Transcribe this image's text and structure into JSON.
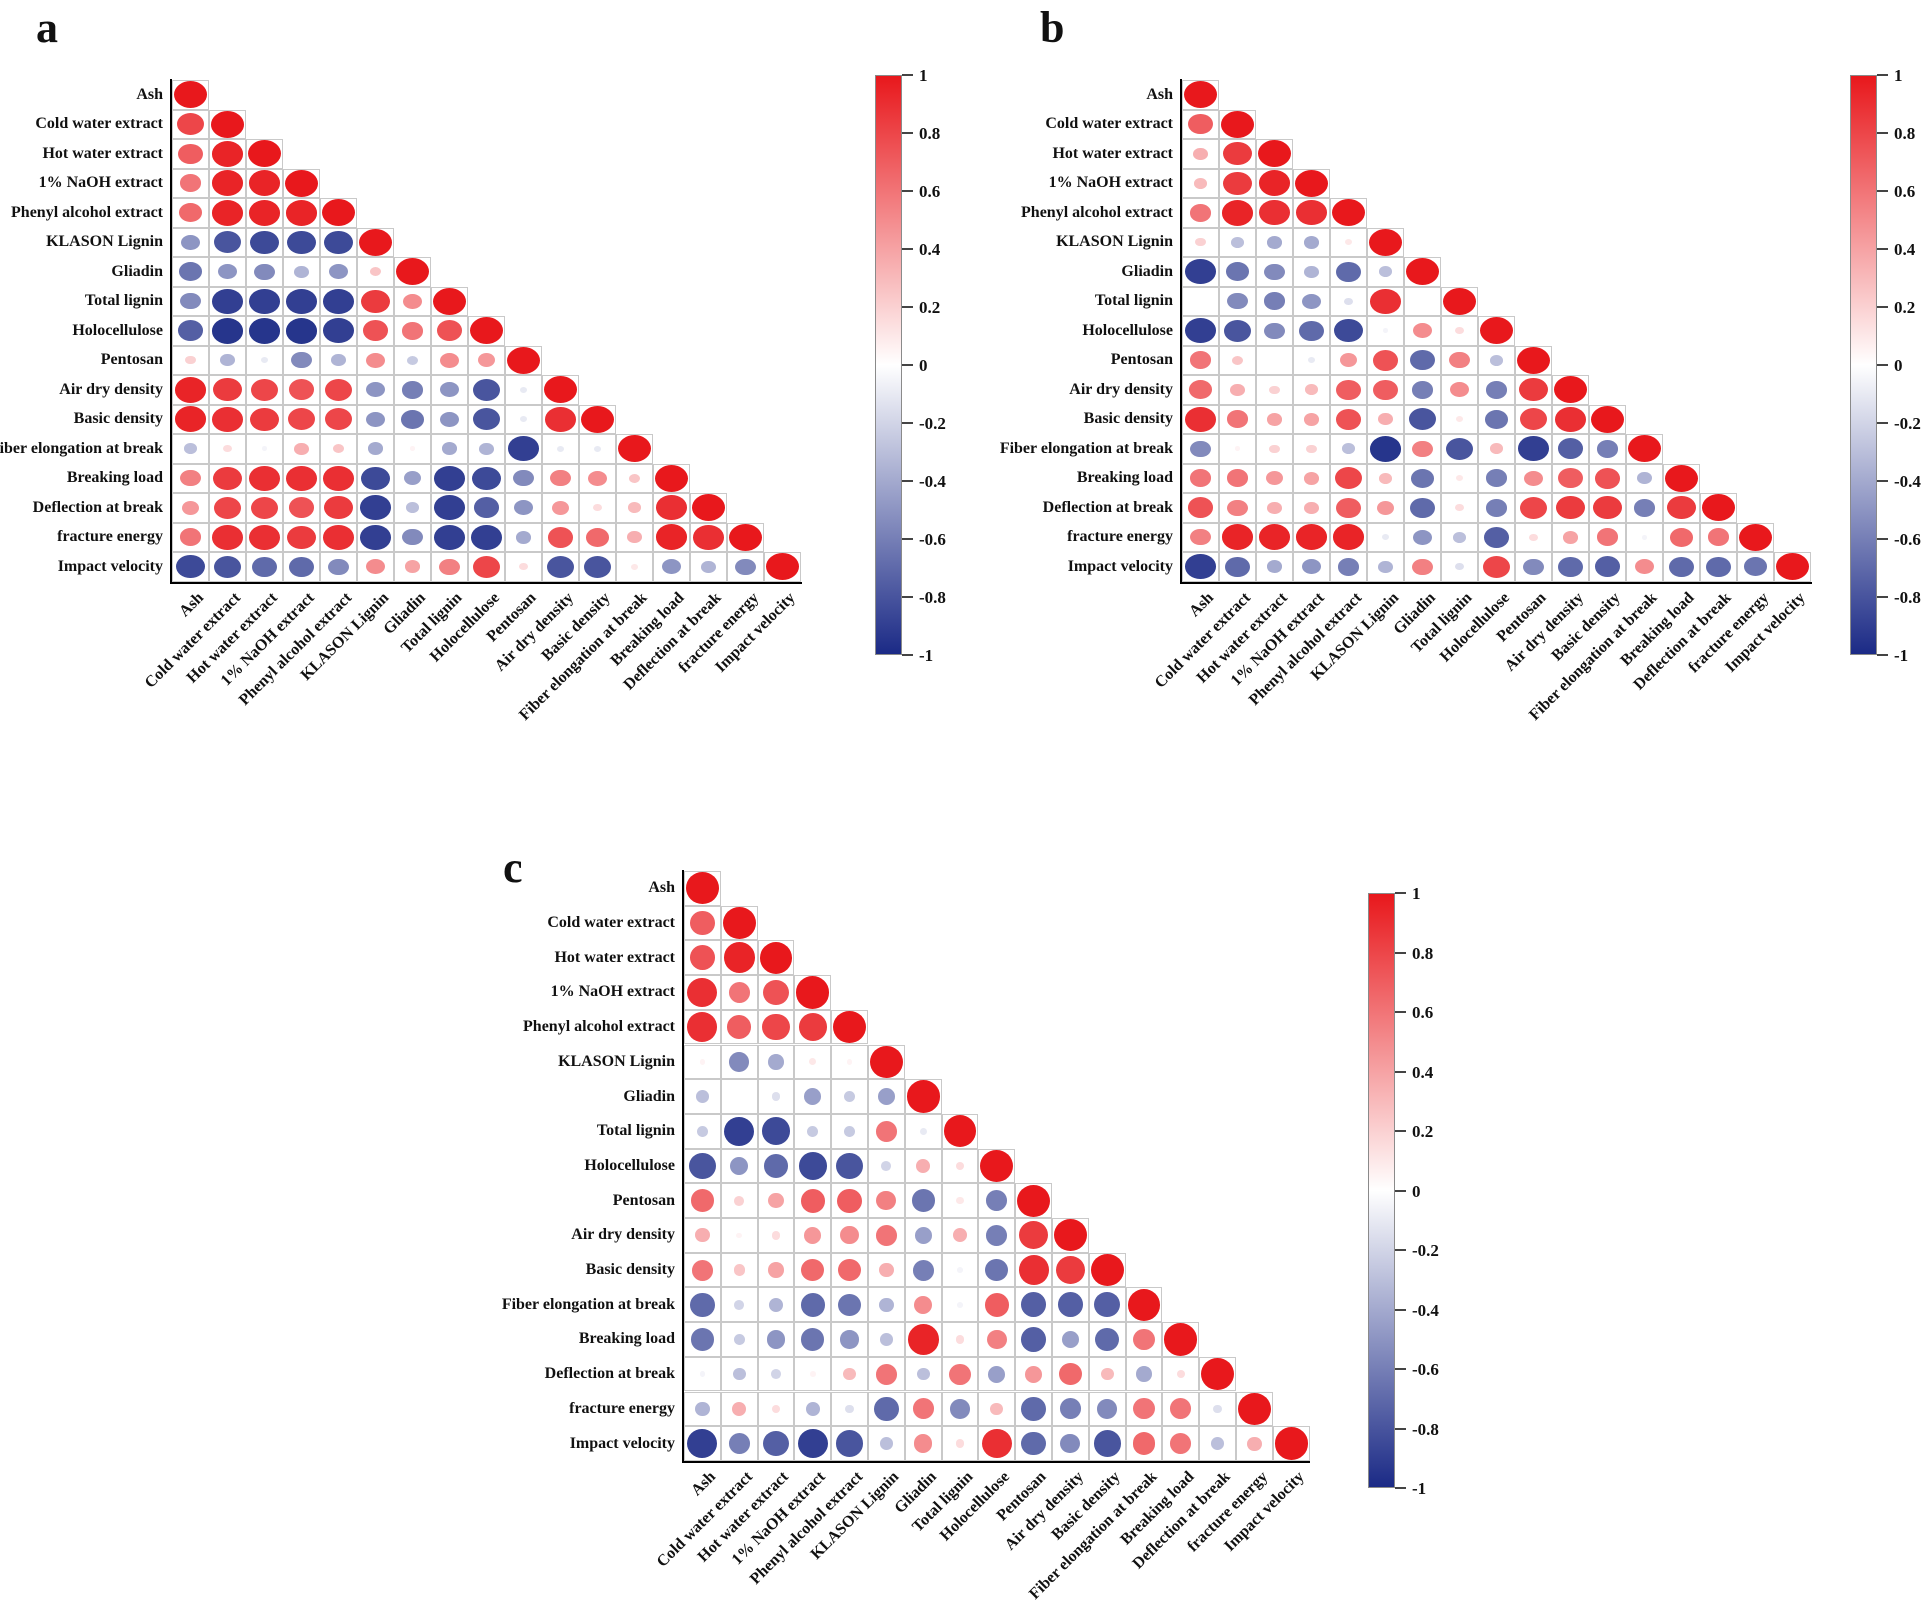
{
  "figure": {
    "background_color": "#ffffff",
    "panel_labels": [
      "a",
      "b",
      "c"
    ],
    "accent_positive_color": "#e8181c",
    "accent_negative_color": "#1b2a86"
  },
  "variables": [
    "Ash",
    "Cold water extract",
    "Hot water extract",
    "1% NaOH extract",
    "Phenyl alcohol extract",
    "KLASON Lignin",
    "Gliadin",
    "Total lignin",
    "Holocellulose",
    "Pentosan",
    "Air dry density",
    "Basic density",
    "Fiber elongation at break",
    "Breaking load",
    "Deflection at break",
    "fracture energy",
    "Impact velocity"
  ],
  "colorbar": {
    "tick_labels": [
      "1",
      "0.8",
      "0.6",
      "0.4",
      "0.2",
      "0",
      "-0.2",
      "-0.4",
      "-0.6",
      "-0.8",
      "-1"
    ],
    "top_color": "#e8181c",
    "mid_color": "#ffffff",
    "bottom_color": "#1b2a86"
  },
  "chart_data": [
    {
      "type": "heatmap",
      "subtype": "correlation-circle-matrix-lower-triangle",
      "panel_label": "a",
      "value_range": [
        -1,
        1
      ],
      "legend_position": "right",
      "categories": [
        "Ash",
        "Cold water extract",
        "Hot water extract",
        "1% NaOH extract",
        "Phenyl alcohol extract",
        "KLASON Lignin",
        "Gliadin",
        "Total lignin",
        "Holocellulose",
        "Pentosan",
        "Air dry density",
        "Basic density",
        "Fiber elongation at break",
        "Breaking load",
        "Deflection at break",
        "fracture energy",
        "Impact velocity"
      ],
      "matrix": [
        [
          1
        ],
        [
          0.8,
          1
        ],
        [
          0.7,
          0.95,
          1
        ],
        [
          0.6,
          0.95,
          0.95,
          1
        ],
        [
          0.65,
          0.95,
          0.95,
          0.95,
          1
        ],
        [
          -0.5,
          -0.8,
          -0.85,
          -0.85,
          -0.85,
          1
        ],
        [
          -0.65,
          -0.5,
          -0.55,
          -0.35,
          -0.5,
          0.25,
          1
        ],
        [
          -0.55,
          -0.9,
          -0.9,
          -0.9,
          -0.9,
          0.85,
          0.5,
          1
        ],
        [
          -0.75,
          -0.95,
          -0.95,
          -0.95,
          -0.9,
          0.75,
          0.6,
          0.75,
          1
        ],
        [
          0.2,
          -0.35,
          -0.1,
          -0.55,
          -0.35,
          0.5,
          -0.25,
          0.5,
          0.45,
          1
        ],
        [
          0.95,
          0.85,
          0.8,
          0.75,
          0.8,
          -0.5,
          -0.6,
          -0.5,
          -0.8,
          -0.1,
          1
        ],
        [
          0.95,
          0.9,
          0.85,
          0.8,
          0.8,
          -0.5,
          -0.65,
          -0.5,
          -0.8,
          -0.1,
          0.9,
          1
        ],
        [
          -0.3,
          0.15,
          -0.05,
          0.35,
          0.25,
          -0.4,
          0.05,
          -0.4,
          -0.35,
          -0.9,
          -0.1,
          -0.1,
          1
        ],
        [
          0.55,
          0.85,
          0.9,
          0.9,
          0.9,
          -0.85,
          -0.45,
          -0.9,
          -0.85,
          -0.55,
          0.55,
          0.5,
          0.25,
          1
        ],
        [
          0.45,
          0.8,
          0.8,
          0.75,
          0.85,
          -0.9,
          -0.3,
          -0.9,
          -0.75,
          -0.5,
          0.45,
          0.15,
          0.3,
          0.9,
          1
        ],
        [
          0.6,
          0.9,
          0.9,
          0.85,
          0.9,
          -0.9,
          -0.55,
          -0.9,
          -0.9,
          -0.4,
          0.75,
          0.65,
          0.35,
          0.95,
          0.9,
          1
        ],
        [
          -0.85,
          -0.8,
          -0.7,
          -0.7,
          -0.55,
          0.5,
          0.4,
          0.55,
          0.8,
          0.15,
          -0.8,
          -0.8,
          0.1,
          -0.5,
          -0.35,
          -0.55,
          1
        ]
      ]
    },
    {
      "type": "heatmap",
      "subtype": "correlation-circle-matrix-lower-triangle",
      "panel_label": "b",
      "value_range": [
        -1,
        1
      ],
      "legend_position": "right",
      "categories": [
        "Ash",
        "Cold water extract",
        "Hot water extract",
        "1% NaOH extract",
        "Phenyl alcohol extract",
        "KLASON Lignin",
        "Gliadin",
        "Total lignin",
        "Holocellulose",
        "Pentosan",
        "Air dry density",
        "Basic density",
        "Fiber elongation at break",
        "Breaking load",
        "Deflection at break",
        "fracture energy",
        "Impact velocity"
      ],
      "matrix": [
        [
          1
        ],
        [
          0.7,
          1
        ],
        [
          0.35,
          0.85,
          1
        ],
        [
          0.3,
          0.85,
          0.95,
          1
        ],
        [
          0.6,
          0.95,
          0.9,
          0.9,
          1
        ],
        [
          0.2,
          -0.3,
          -0.4,
          -0.4,
          0.1,
          1
        ],
        [
          -0.9,
          -0.65,
          -0.55,
          -0.35,
          -0.7,
          -0.3,
          1
        ],
        [
          0,
          -0.55,
          -0.6,
          -0.5,
          -0.15,
          0.9,
          0,
          1
        ],
        [
          -0.9,
          -0.8,
          -0.55,
          -0.7,
          -0.85,
          -0.05,
          0.5,
          0.15,
          1
        ],
        [
          0.6,
          0.25,
          0,
          -0.1,
          0.45,
          0.75,
          -0.7,
          0.55,
          -0.3,
          1
        ],
        [
          0.65,
          0.35,
          0.2,
          0.3,
          0.7,
          0.7,
          -0.6,
          0.5,
          -0.6,
          0.85,
          1
        ],
        [
          0.9,
          0.6,
          0.4,
          0.4,
          0.75,
          0.35,
          -0.8,
          0.1,
          -0.65,
          0.8,
          0.9,
          1
        ],
        [
          -0.55,
          0.05,
          0.2,
          0.2,
          -0.3,
          -0.95,
          0.55,
          -0.8,
          0.3,
          -0.9,
          -0.75,
          -0.6,
          1
        ],
        [
          0.6,
          0.6,
          0.45,
          0.4,
          0.8,
          0.3,
          -0.65,
          0.1,
          -0.6,
          0.5,
          0.7,
          0.75,
          -0.35,
          1
        ],
        [
          0.75,
          0.55,
          0.35,
          0.35,
          0.7,
          0.45,
          -0.7,
          0.15,
          -0.6,
          0.8,
          0.85,
          0.85,
          -0.6,
          0.85,
          1
        ],
        [
          0.55,
          0.95,
          0.95,
          0.95,
          0.95,
          -0.1,
          -0.5,
          -0.3,
          -0.75,
          0.15,
          0.4,
          0.6,
          -0.05,
          0.65,
          0.6,
          1
        ],
        [
          -0.9,
          -0.7,
          -0.4,
          -0.5,
          -0.6,
          -0.35,
          0.55,
          -0.15,
          0.8,
          -0.55,
          -0.7,
          -0.75,
          0.5,
          -0.7,
          -0.7,
          -0.65,
          1
        ]
      ]
    },
    {
      "type": "heatmap",
      "subtype": "correlation-circle-matrix-lower-triangle",
      "panel_label": "c",
      "value_range": [
        -1,
        1
      ],
      "legend_position": "right",
      "categories": [
        "Ash",
        "Cold water extract",
        "Hot water extract",
        "1% NaOH extract",
        "Phenyl alcohol extract",
        "KLASON Lignin",
        "Gliadin",
        "Total lignin",
        "Holocellulose",
        "Pentosan",
        "Air dry density",
        "Basic density",
        "Fiber elongation at break",
        "Breaking load",
        "Deflection at break",
        "fracture energy",
        "Impact velocity"
      ],
      "matrix": [
        [
          1
        ],
        [
          0.7,
          1
        ],
        [
          0.75,
          0.95,
          1
        ],
        [
          0.9,
          0.6,
          0.75,
          1
        ],
        [
          0.9,
          0.7,
          0.8,
          0.85,
          1
        ],
        [
          0.05,
          -0.55,
          -0.4,
          0.1,
          0.05,
          1
        ],
        [
          -0.3,
          0,
          -0.15,
          -0.45,
          -0.25,
          -0.45,
          1
        ],
        [
          -0.25,
          -0.9,
          -0.85,
          -0.25,
          -0.25,
          0.6,
          -0.1,
          1
        ],
        [
          -0.8,
          -0.5,
          -0.7,
          -0.85,
          -0.8,
          -0.2,
          0.35,
          0.15,
          1
        ],
        [
          0.65,
          0.2,
          0.4,
          0.7,
          0.7,
          0.55,
          -0.65,
          0.1,
          -0.6,
          1
        ],
        [
          0.35,
          0.05,
          0.15,
          0.45,
          0.5,
          0.6,
          -0.45,
          0.35,
          -0.6,
          0.85,
          1
        ],
        [
          0.6,
          0.25,
          0.4,
          0.65,
          0.65,
          0.35,
          -0.6,
          -0.05,
          -0.65,
          0.9,
          0.85,
          1
        ],
        [
          -0.7,
          -0.2,
          -0.35,
          -0.7,
          -0.65,
          -0.35,
          0.5,
          -0.05,
          0.7,
          -0.75,
          -0.75,
          -0.75,
          1
        ],
        [
          -0.65,
          -0.25,
          -0.5,
          -0.65,
          -0.5,
          -0.3,
          0.95,
          0.15,
          0.55,
          -0.75,
          -0.45,
          -0.7,
          0.6,
          1
        ],
        [
          -0.05,
          -0.3,
          -0.2,
          0.05,
          0.3,
          0.6,
          -0.3,
          0.6,
          -0.45,
          0.45,
          0.65,
          0.3,
          -0.4,
          0.15,
          1
        ],
        [
          -0.35,
          0.35,
          0.15,
          -0.35,
          -0.15,
          -0.7,
          0.6,
          -0.55,
          0.3,
          -0.7,
          -0.6,
          -0.55,
          0.6,
          0.6,
          -0.15,
          1
        ],
        [
          -0.9,
          -0.6,
          -0.75,
          -0.9,
          -0.8,
          -0.3,
          0.5,
          0.15,
          0.9,
          -0.7,
          -0.55,
          -0.8,
          0.65,
          0.6,
          -0.3,
          0.35,
          1
        ]
      ]
    }
  ]
}
